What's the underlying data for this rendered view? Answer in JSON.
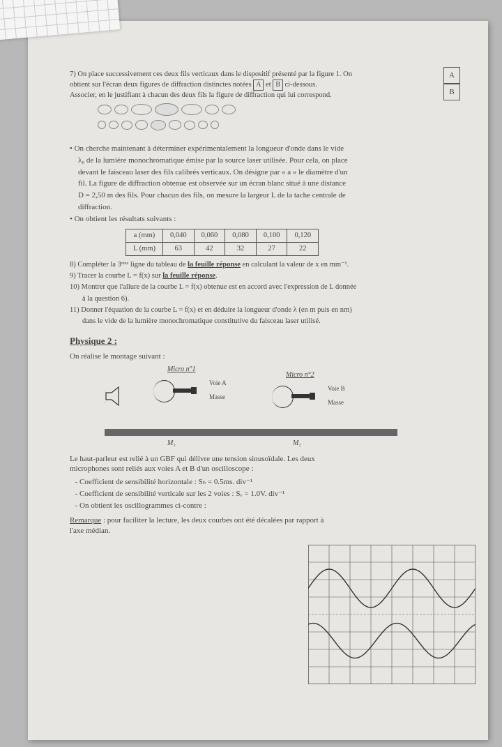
{
  "q7": {
    "line1": "7) On place successivement ces deux fils verticaux dans le dispositif présenté par la figure 1. On",
    "line2": "obtient sur l'écran deux figures de diffraction distinctes notées",
    "boxA": "A",
    "et": "et",
    "boxB": "B",
    "line2b": "ci-dessous.",
    "line3": "Associer, en le justifiant à chacun des deux fils la figure de diffraction qui lui correspond.",
    "labelA": "A",
    "labelB": "B"
  },
  "bullet1": {
    "l1": "• On cherche maintenant à déterminer expérimentalement la longueur d'onde dans le vide",
    "l2": "λ₀ de la lumière monochromatique émise par la source laser utilisée. Pour cela, on place",
    "l3": "devant le faisceau laser des fils calibrés verticaux. On désigne par « a » le diamètre d'un",
    "l4": "fil. La figure de diffraction obtenue est observée sur un écran blanc situé à une distance",
    "l5": "D = 2,50 m des fils. Pour chacun des fils, on mesure la largeur L de la tache centrale de",
    "l6": "diffraction."
  },
  "bullet2": "• On obtient les résultats suivants :",
  "table": {
    "h_a": "a (mm)",
    "a": [
      "0,040",
      "0,060",
      "0,080",
      "0,100",
      "0,120"
    ],
    "h_L": "L (mm)",
    "L": [
      "63",
      "42",
      "32",
      "27",
      "22"
    ]
  },
  "q8": "8) Compléter la 3ᵉᵐᵉ ligne du tableau de la feuille réponse en calculant la valeur de x en mm⁻¹.",
  "q9": "9) Tracer la courbe L = f(x) sur la feuille réponse.",
  "q10a": "10) Montrer que l'allure de la courbe L = f(x) obtenue est en accord avec l'expression de L donnée",
  "q10b": "à la question 6).",
  "q11a": "11) Donner l'équation de la courbe L = f(x) et en déduire la longueur d'onde λ (en m puis en nm)",
  "q11b": "dans le vide de la lumière monochromatique constitutive du faisceau laser utilisé.",
  "phys2_title": "Physique 2 :",
  "phys2_intro": "On réalise le montage suivant :",
  "montage": {
    "micro1": "Micro n°1",
    "micro2": "Micro n°2",
    "voieA": "Voie A",
    "voieB": "Voie B",
    "masse1": "Masse",
    "masse2": "Masse",
    "m1": "M₁",
    "m2": "M₂"
  },
  "body_text": {
    "p1": "Le haut-parleur est relié à un GBF qui délivre une tension sinusoïdale. Les deux microphones sont reliés aux voies A et B d'un oscilloscope :",
    "li1": "Coefficient de sensibilité horizontale : Sₕ = 0.5ms. div⁻¹",
    "li2": "Coefficient de sensibilité verticale sur les 2 voies : Sᵥ = 1.0V. div⁻¹",
    "li3": "On obtient les oscillogrammes ci-contre :"
  },
  "remark": {
    "label": "Remarque",
    "text": " : pour faciliter la lecture, les deux courbes ont été décalées par rapport à l'axe médian."
  },
  "osc": {
    "cols": 8,
    "rows": 8,
    "grid_color": "#555",
    "bg": "#e8e6e2",
    "wave1_phase": 0,
    "wave2_phase": 1.2,
    "wave1_amp": 2.2,
    "wave2_amp": 2.0,
    "wave1_offset": -1.5,
    "wave2_offset": 1.5,
    "periods": 2.0
  }
}
